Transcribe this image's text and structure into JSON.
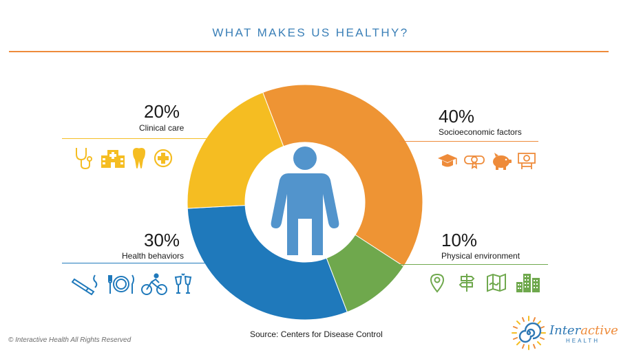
{
  "title": "WHAT MAKES US HEALTHY?",
  "chart_data": {
    "type": "pie",
    "variant": "donut",
    "title": "WHAT MAKES US HEALTHY?",
    "start_angle_deg": -21,
    "slices": [
      {
        "label": "Socioeconomic factors",
        "value": 40,
        "display": "40%",
        "color": "#ee9434"
      },
      {
        "label": "Physical environment",
        "value": 10,
        "display": "10%",
        "color": "#6fa84d"
      },
      {
        "label": "Health behaviors",
        "value": 30,
        "display": "30%",
        "color": "#1f79bb"
      },
      {
        "label": "Clinical care",
        "value": 20,
        "display": "20%",
        "color": "#f5bd22"
      }
    ],
    "center_icon": "person-icon",
    "source": "Source: Centers for Disease Control"
  },
  "icon_groups": {
    "clinical_care": [
      "stethoscope-icon",
      "hospital-icon",
      "tooth-icon",
      "medical-cross-icon"
    ],
    "socioeconomic": [
      "graduation-cap-icon",
      "diploma-icon",
      "piggy-bank-icon",
      "money-icon"
    ],
    "health_behaviors": [
      "cigarette-icon",
      "plate-fork-knife-icon",
      "cyclist-icon",
      "champagne-glasses-icon"
    ],
    "physical_environment": [
      "map-pin-icon",
      "signpost-icon",
      "map-icon",
      "city-buildings-icon"
    ]
  },
  "colors": {
    "title": "#3a7fb7",
    "rule_orange": "#ee8b3a",
    "rule_yellow": "#f5bd22",
    "rule_blue": "#1f79bb",
    "rule_green": "#6fa84d",
    "person": "#5294cc"
  },
  "footer": {
    "copyright": "© Interactive Health All Rights Reserved",
    "logo_word_a": "Inter",
    "logo_word_b": "active",
    "logo_sub": "HEALTH"
  }
}
